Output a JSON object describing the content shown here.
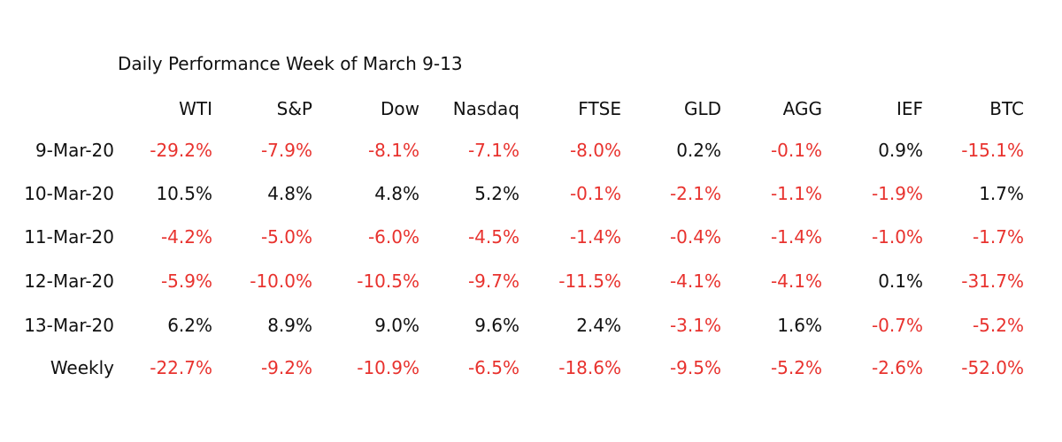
{
  "colors": {
    "negative": "#e8322e",
    "positive": "#111111",
    "background": "#ffffff"
  },
  "chart_data": {
    "type": "table",
    "title": "Daily Performance Week of March 9-13",
    "columns": [
      "WTI",
      "S&P",
      "Dow",
      "Nasdaq",
      "FTSE",
      "GLD",
      "AGG",
      "IEF",
      "BTC"
    ],
    "rows": [
      {
        "label": "9-Mar-20",
        "values": [
          "-29.2%",
          "-7.9%",
          "-8.1%",
          "-7.1%",
          "-8.0%",
          "0.2%",
          "-0.1%",
          "0.9%",
          "-15.1%"
        ]
      },
      {
        "label": "10-Mar-20",
        "values": [
          "10.5%",
          "4.8%",
          "4.8%",
          "5.2%",
          "-0.1%",
          "-2.1%",
          "-1.1%",
          "-1.9%",
          "1.7%"
        ]
      },
      {
        "label": "11-Mar-20",
        "values": [
          "-4.2%",
          "-5.0%",
          "-6.0%",
          "-4.5%",
          "-1.4%",
          "-0.4%",
          "-1.4%",
          "-1.0%",
          "-1.7%"
        ]
      },
      {
        "label": "12-Mar-20",
        "values": [
          "-5.9%",
          "-10.0%",
          "-10.5%",
          "-9.7%",
          "-11.5%",
          "-4.1%",
          "-4.1%",
          "0.1%",
          "-31.7%"
        ]
      },
      {
        "label": "13-Mar-20",
        "values": [
          "6.2%",
          "8.9%",
          "9.0%",
          "9.6%",
          "2.4%",
          "-3.1%",
          "1.6%",
          "-0.7%",
          "-5.2%"
        ]
      },
      {
        "label": "Weekly",
        "values": [
          "-22.7%",
          "-9.2%",
          "-10.9%",
          "-6.5%",
          "-18.6%",
          "-9.5%",
          "-5.2%",
          "-2.6%",
          "-52.0%"
        ]
      }
    ]
  }
}
